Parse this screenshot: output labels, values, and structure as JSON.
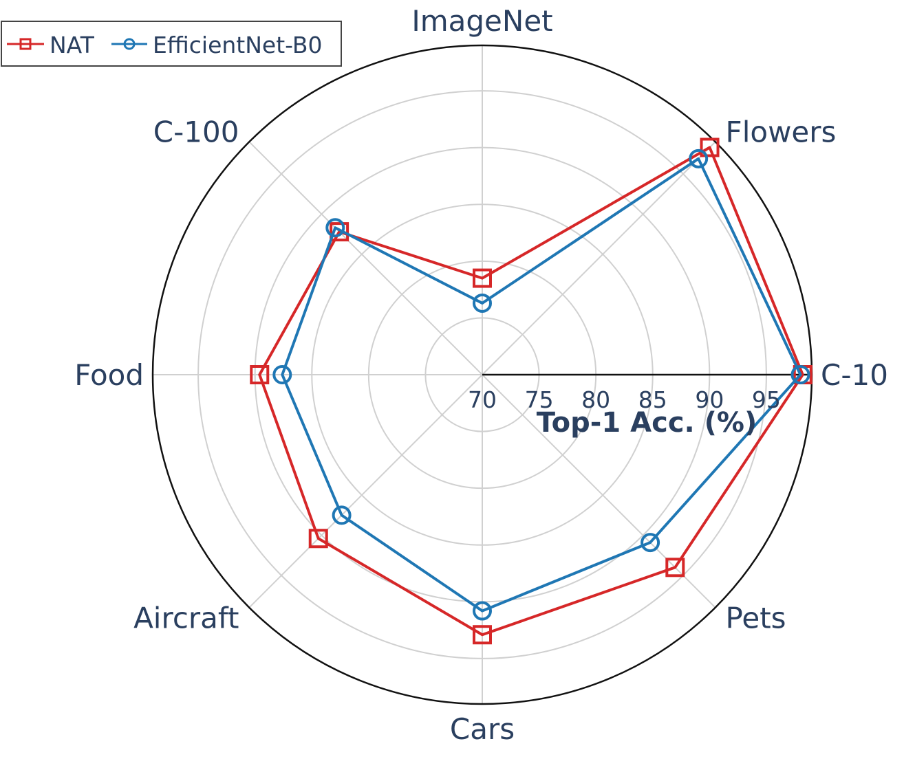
{
  "chart_data": {
    "type": "radar",
    "axes": [
      "ImageNet",
      "Flowers",
      "C-10",
      "Pets",
      "Cars",
      "Aircraft",
      "Food",
      "C-100"
    ],
    "radial_axis": {
      "title": "Top-1 Acc. (%)",
      "range": [
        70,
        99
      ],
      "ticks": [
        70,
        75,
        80,
        85,
        90,
        95
      ]
    },
    "series": [
      {
        "name": "NAT",
        "color": "#d62728",
        "marker": "square",
        "values": [
          78.5,
          98.3,
          98.2,
          94.0,
          92.9,
          90.4,
          89.6,
          87.8
        ]
      },
      {
        "name": "EfficientNet-B0",
        "color": "#1f77b4",
        "marker": "circle",
        "values": [
          76.3,
          96.9,
          98.0,
          90.9,
          90.8,
          87.5,
          87.6,
          88.3
        ]
      }
    ],
    "legend_position": "top-left",
    "grid": true
  }
}
